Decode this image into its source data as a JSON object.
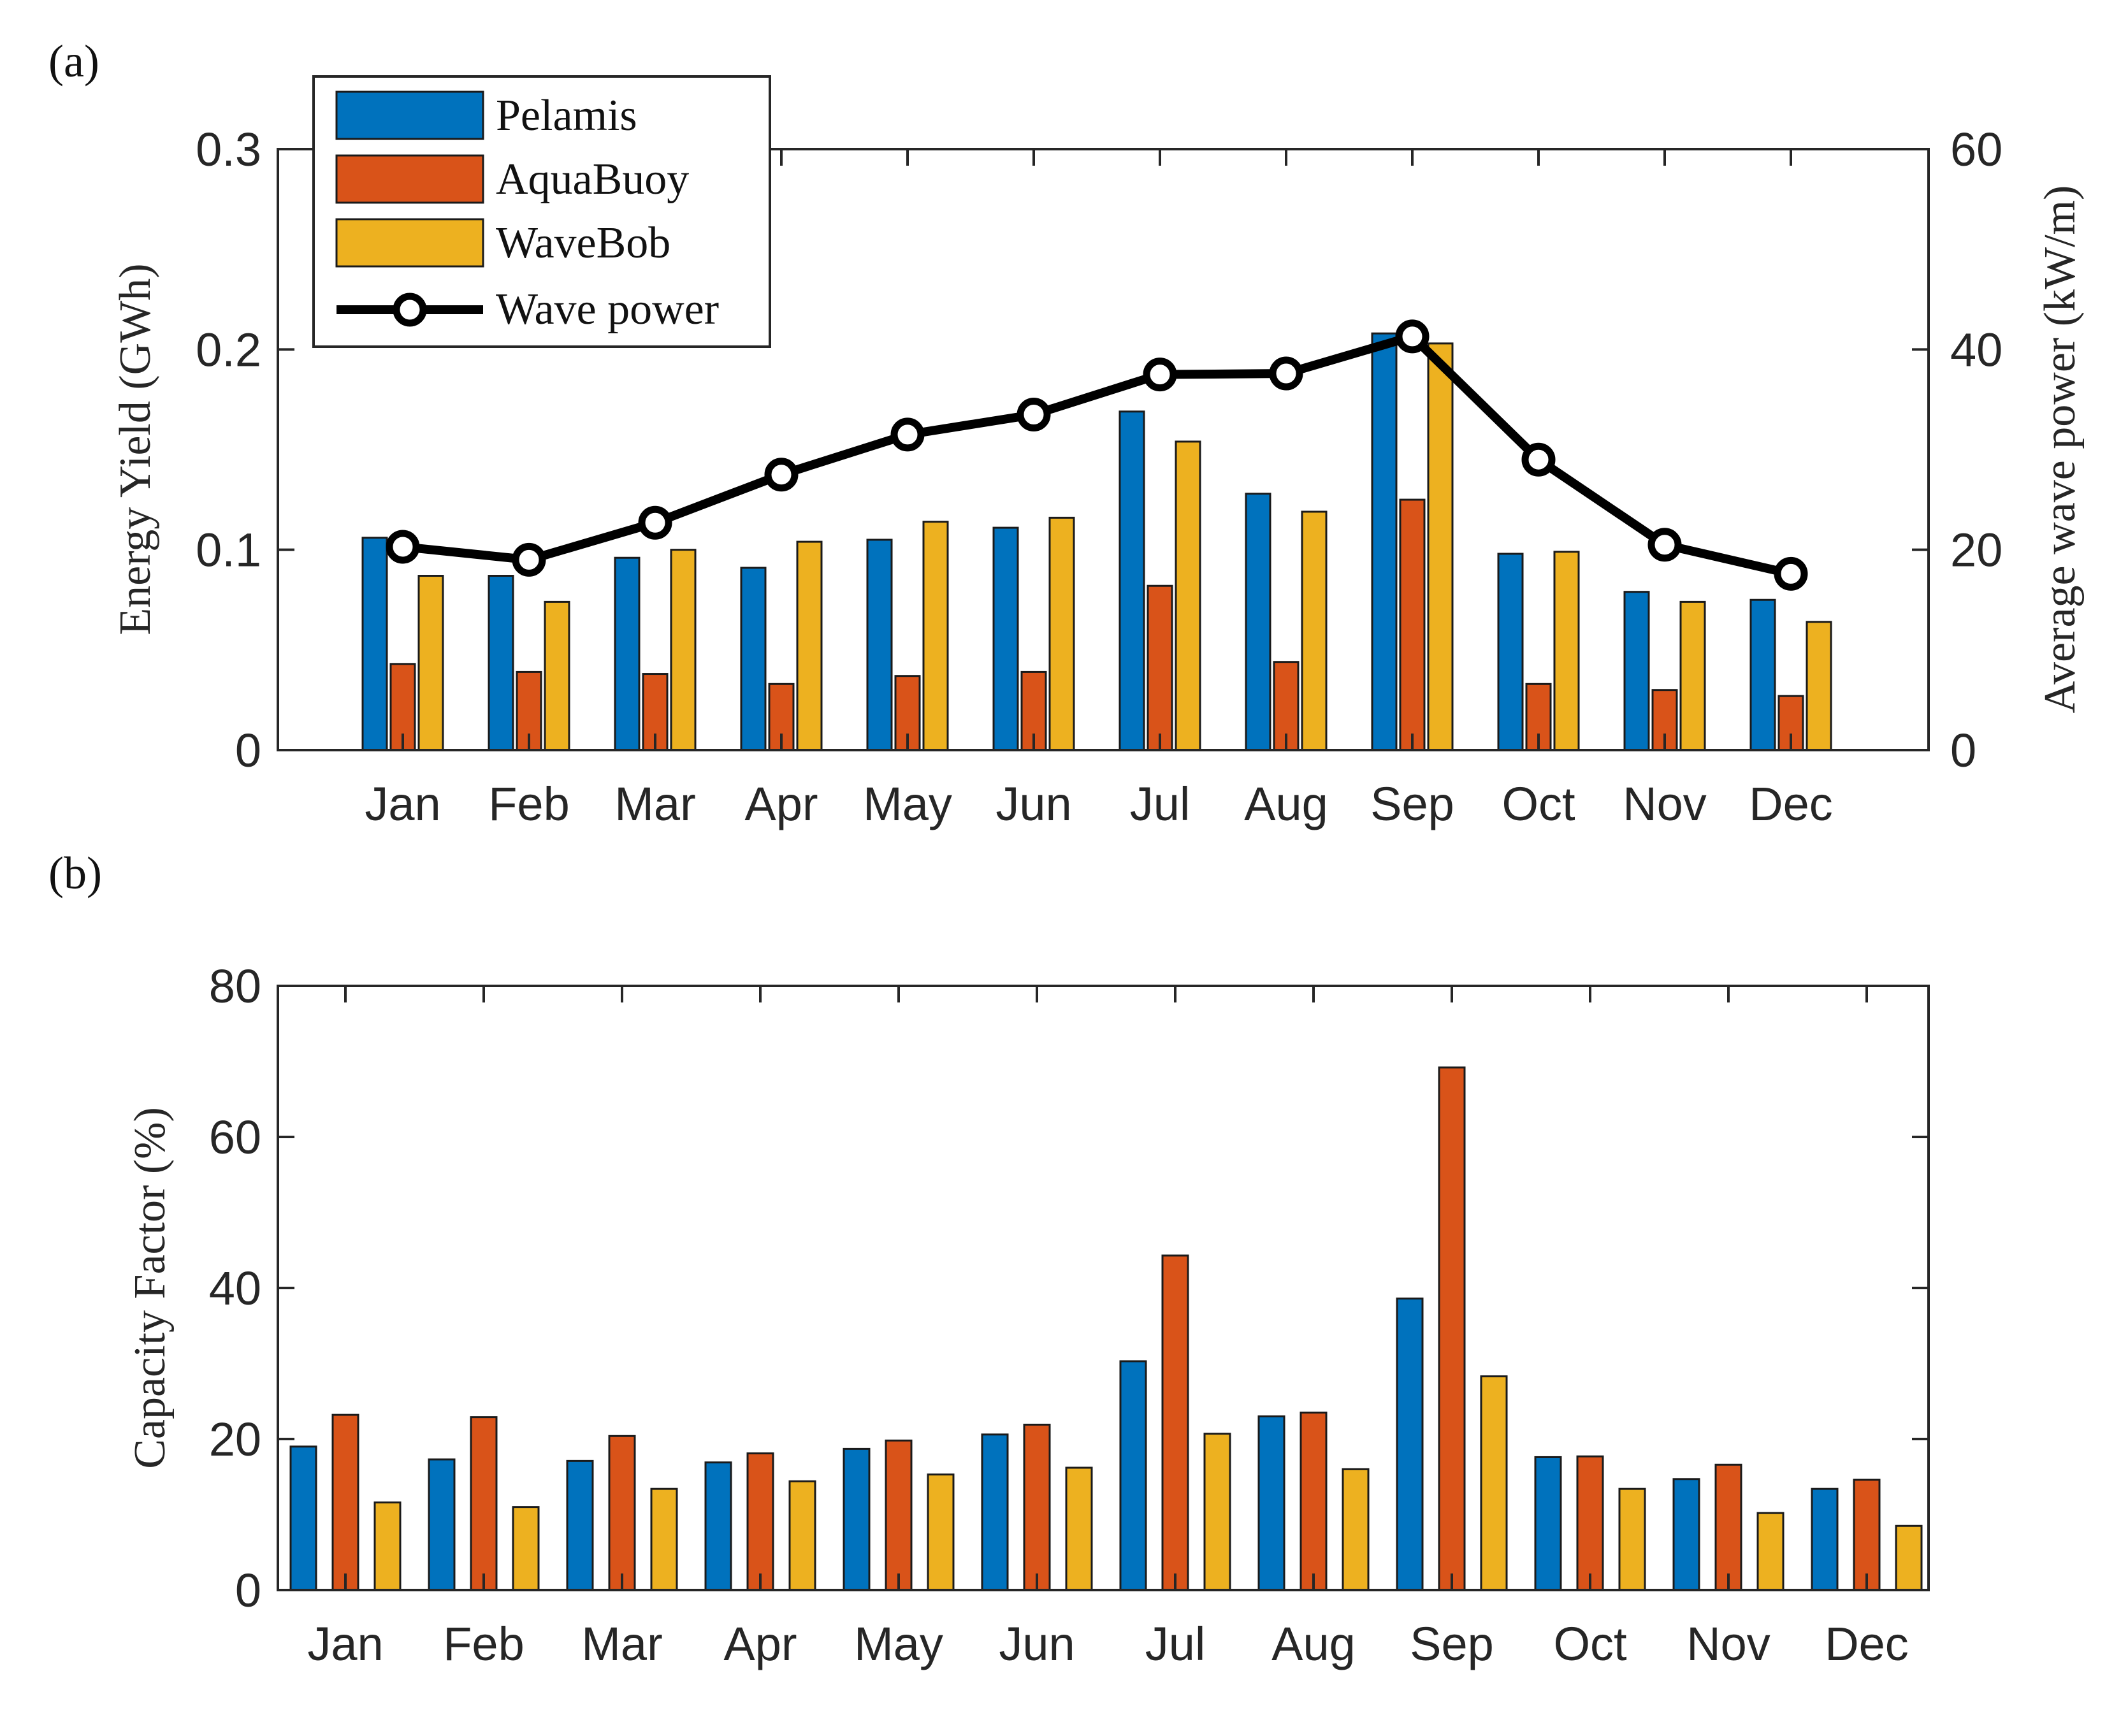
{
  "chart_data": [
    {
      "type": "bar",
      "panel_label": "(a)",
      "categories": [
        "Jan",
        "Feb",
        "Mar",
        "Apr",
        "May",
        "Jun",
        "Jul",
        "Aug",
        "Sep",
        "Oct",
        "Nov",
        "Dec"
      ],
      "ylabel": "Energy Yield (GWh)",
      "ylim": [
        0,
        0.3
      ],
      "yticks": [
        "0",
        "0.1",
        "0.2",
        "0.3"
      ],
      "y2label": "Average wave power (kW/m)",
      "y2lim": [
        0,
        60
      ],
      "y2ticks": [
        "0",
        "20",
        "40",
        "60"
      ],
      "legend_position": "top-left",
      "series": [
        {
          "name": "Pelamis",
          "color": "#0072BD",
          "values": [
            0.106,
            0.087,
            0.096,
            0.091,
            0.105,
            0.111,
            0.169,
            0.128,
            0.208,
            0.098,
            0.079,
            0.075
          ]
        },
        {
          "name": "AquaBuoy",
          "color": "#D95319",
          "values": [
            0.043,
            0.039,
            0.038,
            0.033,
            0.037,
            0.039,
            0.082,
            0.044,
            0.125,
            0.033,
            0.03,
            0.027
          ]
        },
        {
          "name": "WaveBob",
          "color": "#EDB120",
          "values": [
            0.087,
            0.074,
            0.1,
            0.104,
            0.114,
            0.116,
            0.154,
            0.119,
            0.203,
            0.099,
            0.074,
            0.064
          ]
        }
      ],
      "line_series": {
        "name": "Wave power",
        "axis": "right",
        "color": "#000000",
        "marker": "circle",
        "values": [
          20.3,
          19.0,
          22.7,
          27.5,
          31.5,
          33.5,
          37.5,
          37.6,
          41.3,
          29.0,
          20.5,
          17.6
        ]
      }
    },
    {
      "type": "bar",
      "panel_label": "(b)",
      "categories": [
        "Jan",
        "Feb",
        "Mar",
        "Apr",
        "May",
        "Jun",
        "Jul",
        "Aug",
        "Sep",
        "Oct",
        "Nov",
        "Dec"
      ],
      "ylabel": "Capacity Factor (%)",
      "ylim": [
        0,
        80
      ],
      "yticks": [
        "0",
        "20",
        "40",
        "60",
        "80"
      ],
      "series": [
        {
          "name": "Pelamis",
          "color": "#0072BD",
          "values": [
            19.0,
            17.3,
            17.1,
            16.9,
            18.7,
            20.6,
            30.3,
            23.0,
            38.6,
            17.6,
            14.7,
            13.4
          ]
        },
        {
          "name": "AquaBuoy",
          "color": "#D95319",
          "values": [
            23.2,
            22.9,
            20.4,
            18.1,
            19.8,
            21.9,
            44.3,
            23.5,
            69.2,
            17.7,
            16.6,
            14.6
          ]
        },
        {
          "name": "WaveBob",
          "color": "#EDB120",
          "values": [
            11.6,
            11.0,
            13.4,
            14.4,
            15.3,
            16.2,
            20.7,
            16.0,
            28.3,
            13.4,
            10.2,
            8.5
          ]
        }
      ]
    }
  ]
}
